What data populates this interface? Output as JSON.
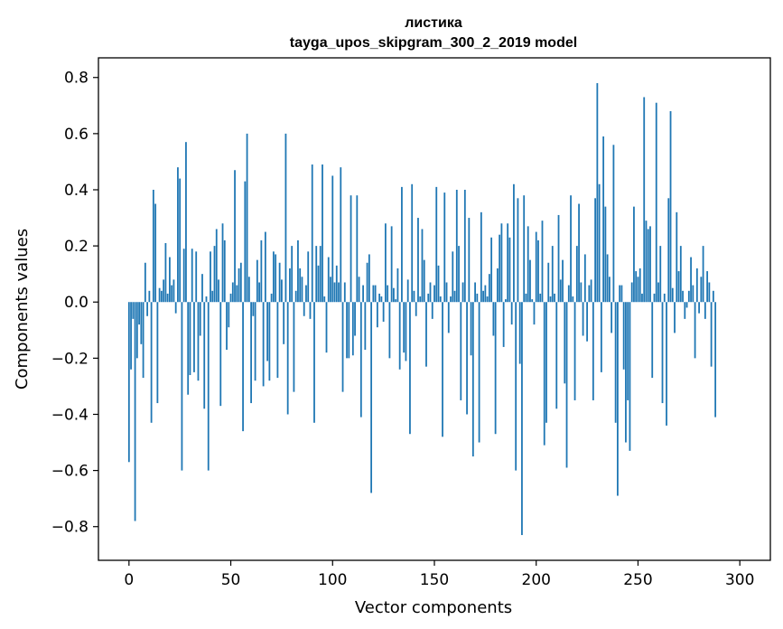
{
  "chart_data": {
    "type": "bar",
    "title": "листика",
    "subtitle": "tayga_upos_skipgram_300_2_2019 model",
    "xlabel": "Vector components",
    "ylabel": "Components values",
    "xlim": [
      -15,
      315
    ],
    "ylim": [
      -0.92,
      0.87
    ],
    "xticks": [
      0,
      50,
      100,
      150,
      200,
      250,
      300
    ],
    "yticks": [
      -0.8,
      -0.6,
      -0.4,
      -0.2,
      0.0,
      0.2,
      0.4,
      0.6,
      0.8
    ],
    "xtick_labels": [
      "0",
      "50",
      "100",
      "150",
      "200",
      "250",
      "300"
    ],
    "ytick_labels": [
      "−0.8",
      "−0.6",
      "−0.4",
      "−0.2",
      "0.0",
      "0.2",
      "0.4",
      "0.6",
      "0.8"
    ],
    "grid": false,
    "bar_color": "#1f77b4",
    "values": [
      -0.57,
      -0.24,
      -0.06,
      -0.78,
      -0.2,
      -0.08,
      -0.15,
      -0.27,
      0.14,
      -0.05,
      0.04,
      -0.43,
      0.4,
      0.35,
      -0.36,
      0.05,
      0.04,
      0.08,
      0.21,
      0.03,
      0.16,
      0.06,
      0.08,
      -0.04,
      0.48,
      0.44,
      -0.6,
      0.19,
      0.57,
      -0.33,
      -0.26,
      0.19,
      -0.25,
      0.18,
      -0.28,
      -0.12,
      0.1,
      -0.38,
      0.02,
      -0.6,
      0.18,
      0.04,
      0.2,
      0.26,
      0.08,
      -0.37,
      0.28,
      0.22,
      -0.17,
      -0.09,
      0.03,
      0.07,
      0.47,
      0.06,
      0.12,
      0.14,
      -0.46,
      0.43,
      0.6,
      0.09,
      -0.36,
      -0.05,
      -0.28,
      0.15,
      0.07,
      0.22,
      -0.3,
      0.25,
      -0.21,
      -0.28,
      0.03,
      0.18,
      0.17,
      -0.27,
      0.14,
      0.08,
      -0.15,
      0.6,
      -0.4,
      0.12,
      0.2,
      -0.32,
      0.04,
      0.22,
      0.12,
      0.09,
      -0.05,
      0.06,
      0.18,
      -0.06,
      0.49,
      -0.43,
      0.2,
      0.13,
      0.2,
      0.49,
      0.02,
      -0.18,
      0.16,
      0.09,
      0.45,
      0.07,
      0.13,
      0.07,
      0.48,
      -0.32,
      0.07,
      -0.2,
      -0.2,
      0.38,
      -0.19,
      -0.12,
      0.38,
      0.09,
      -0.41,
      0.06,
      -0.17,
      0.14,
      0.17,
      -0.68,
      0.06,
      0.06,
      -0.09,
      0.03,
      0.02,
      -0.07,
      0.28,
      0.06,
      -0.2,
      0.27,
      0.05,
      0.01,
      0.12,
      -0.24,
      0.41,
      -0.18,
      -0.21,
      0.08,
      -0.47,
      0.42,
      0.04,
      -0.05,
      0.3,
      0.02,
      0.26,
      0.15,
      -0.23,
      0.03,
      0.07,
      -0.06,
      0.06,
      0.41,
      0.13,
      0.02,
      -0.48,
      0.39,
      0.07,
      -0.11,
      0.02,
      0.18,
      0.04,
      0.4,
      0.2,
      -0.35,
      0.07,
      0.4,
      -0.4,
      0.3,
      -0.19,
      -0.55,
      0.07,
      0.03,
      -0.5,
      0.32,
      0.04,
      0.06,
      0.02,
      0.1,
      0.23,
      -0.12,
      -0.47,
      0.12,
      0.24,
      0.28,
      -0.16,
      0.01,
      0.28,
      0.23,
      -0.08,
      0.42,
      -0.6,
      0.37,
      -0.22,
      -0.83,
      0.38,
      0.03,
      0.27,
      0.15,
      0.01,
      -0.08,
      0.25,
      0.22,
      0.03,
      0.29,
      -0.51,
      -0.43,
      0.14,
      0.02,
      0.2,
      0.03,
      -0.38,
      0.31,
      0.08,
      0.15,
      -0.29,
      -0.59,
      0.06,
      0.38,
      0.02,
      -0.35,
      0.2,
      0.35,
      0.07,
      -0.12,
      0.17,
      -0.14,
      0.06,
      0.08,
      -0.35,
      0.37,
      0.78,
      0.42,
      -0.25,
      0.59,
      0.34,
      0.17,
      0.09,
      -0.11,
      0.56,
      -0.43,
      -0.69,
      0.06,
      0.06,
      -0.24,
      -0.5,
      -0.35,
      -0.53,
      0.07,
      0.34,
      0.11,
      0.09,
      0.12,
      0.03,
      0.73,
      0.29,
      0.26,
      0.27,
      -0.27,
      0.03,
      0.71,
      0.07,
      0.2,
      -0.36,
      0.03,
      -0.44,
      0.37,
      0.68,
      0.05,
      -0.11,
      0.32,
      0.11,
      0.2,
      0.04,
      -0.06,
      -0.02,
      0.04,
      0.16,
      0.06,
      -0.2,
      0.12,
      -0.04,
      0.09,
      0.2,
      -0.06,
      0.11,
      0.07,
      -0.23,
      0.04,
      -0.41
    ]
  }
}
